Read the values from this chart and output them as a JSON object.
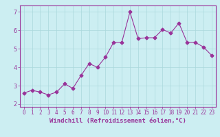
{
  "x": [
    0,
    1,
    2,
    3,
    4,
    5,
    6,
    7,
    8,
    9,
    10,
    11,
    12,
    13,
    14,
    15,
    16,
    17,
    18,
    19,
    20,
    21,
    22,
    23
  ],
  "y": [
    2.6,
    2.75,
    2.65,
    2.5,
    2.65,
    3.1,
    2.85,
    3.55,
    4.2,
    4.0,
    4.55,
    5.35,
    5.35,
    7.0,
    5.55,
    5.6,
    5.6,
    6.05,
    5.85,
    6.4,
    5.35,
    5.35,
    5.1,
    4.65
  ],
  "line_color": "#993399",
  "marker": "D",
  "markersize": 2.5,
  "linewidth": 0.8,
  "xlabel": "Windchill (Refroidissement éolien,°C)",
  "xlabel_fontsize": 6.5,
  "xlim": [
    -0.5,
    23.5
  ],
  "ylim": [
    1.85,
    7.35
  ],
  "yticks": [
    2,
    3,
    4,
    5,
    6,
    7
  ],
  "xticks": [
    0,
    1,
    2,
    3,
    4,
    5,
    6,
    7,
    8,
    9,
    10,
    11,
    12,
    13,
    14,
    15,
    16,
    17,
    18,
    19,
    20,
    21,
    22,
    23
  ],
  "xtick_labels": [
    "0",
    "1",
    "2",
    "3",
    "4",
    "5",
    "6",
    "7",
    "8",
    "9",
    "10",
    "11",
    "12",
    "13",
    "14",
    "15",
    "16",
    "17",
    "18",
    "19",
    "20",
    "21",
    "22",
    "23"
  ],
  "bg_color": "#cceef2",
  "grid_color": "#aad8dc",
  "tick_color": "#993399",
  "tick_fontsize": 5.5,
  "xlabel_color": "#993399",
  "spine_color": "#993399"
}
